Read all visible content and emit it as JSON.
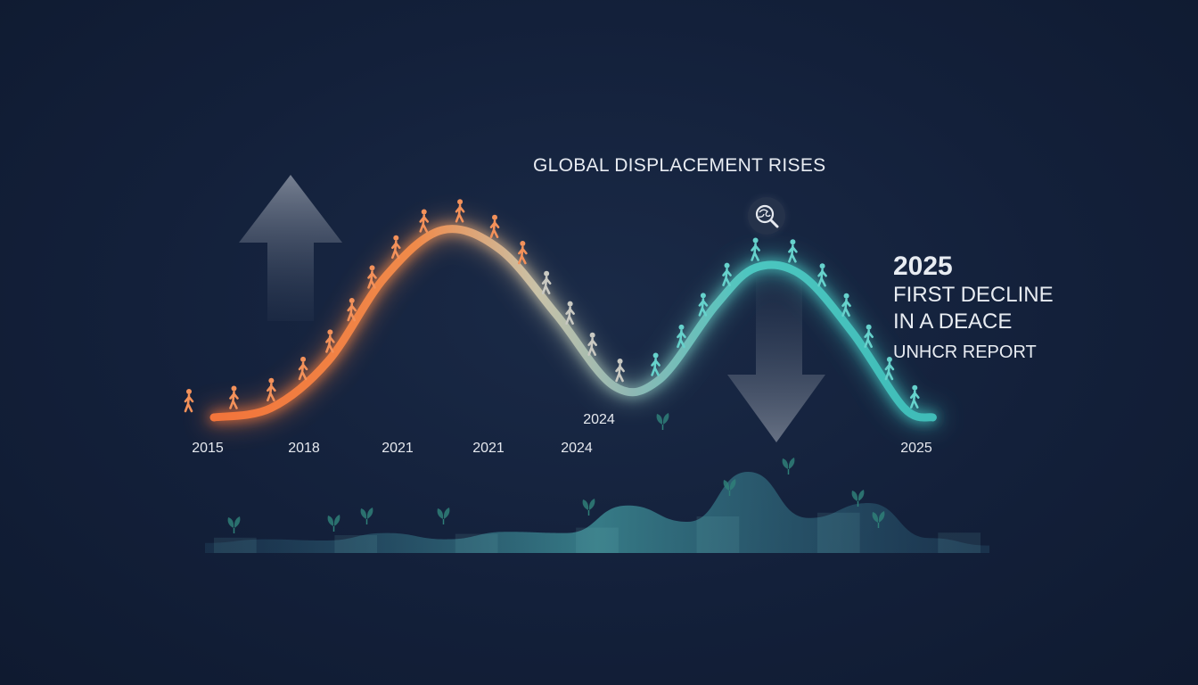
{
  "headline": "GLOBAL DISPLACEMENT RISES",
  "side_panel": {
    "year": "2025",
    "line1": "FIRST DECLINE",
    "line2": "IN A DEACE",
    "source": "UNHCR REPORT"
  },
  "icons": {
    "search": "globe-search-icon",
    "up_arrow": "arrow-up-icon",
    "down_arrow": "arrow-down-icon",
    "person": "walking-person-icon",
    "leaf": "leaf-sprout-icon"
  },
  "colors": {
    "background": "#13203a",
    "rise": "#f47a3a",
    "mid": "#c8c6b8",
    "decline": "#43c7c2",
    "text": "#e8ecf2"
  },
  "chart_data": {
    "type": "line",
    "title": "GLOBAL DISPLACEMENT RISES",
    "xlabel": "",
    "ylabel": "",
    "tick_labels": [
      "2015",
      "2018",
      "2021",
      "2021",
      "2024",
      "2025"
    ],
    "annotation_label": "2024",
    "axis_labels_shown": false,
    "grid": false,
    "series": [
      {
        "values": [
          {
            "x": 0.0,
            "y": 0.0
          },
          {
            "x": 0.1,
            "y": 0.05
          },
          {
            "x": 0.2,
            "y": 0.3
          },
          {
            "x": 0.3,
            "y": 0.75
          },
          {
            "x": 0.4,
            "y": 1.0
          },
          {
            "x": 0.5,
            "y": 0.9
          },
          {
            "x": 0.6,
            "y": 0.55
          },
          {
            "x": 0.7,
            "y": 0.17
          },
          {
            "x": 0.78,
            "y": 0.2
          },
          {
            "x": 0.88,
            "y": 0.6
          },
          {
            "x": 0.95,
            "y": 0.8
          },
          {
            "x": 1.03,
            "y": 0.76
          },
          {
            "x": 1.12,
            "y": 0.45
          },
          {
            "x": 1.21,
            "y": 0.05
          },
          {
            "x": 1.26,
            "y": 0.0
          }
        ]
      }
    ],
    "lower_band": [
      0.08,
      0.11,
      0.1,
      0.16,
      0.11,
      0.17,
      0.16,
      0.38,
      0.25,
      0.65,
      0.28,
      0.4,
      0.12,
      0.06
    ]
  }
}
